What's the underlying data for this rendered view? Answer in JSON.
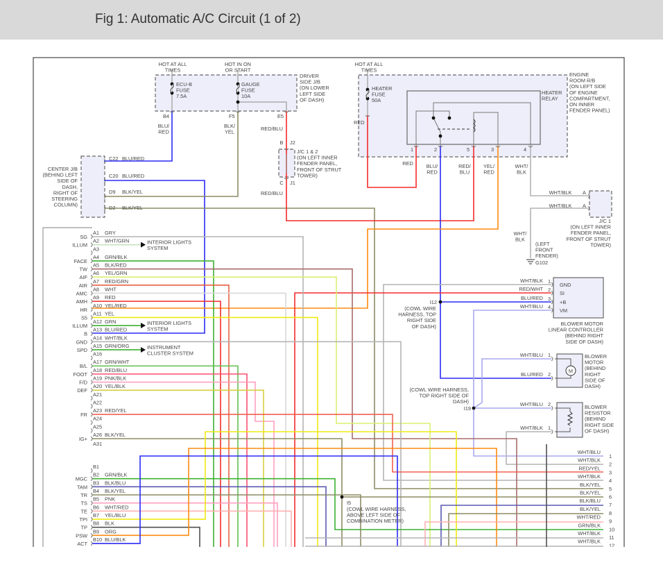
{
  "title": "Fig 1: Automatic A/C Circuit (1 of 2)",
  "colors": {
    "header_bg": "#d9d9d9",
    "BLU": "#2a2af5",
    "RED": "#f52a2a",
    "YEL": "#f0ea10",
    "GRN": "#3cb030",
    "ORG": "#ff8a10",
    "GRY": "#b4b4b4",
    "OLIVE": "#8c8c64",
    "WHT_BLU": "#a8a8f0",
    "PNK": "#ff9fc0",
    "DARK": "#505050",
    "box_fill": "#eeeefa"
  },
  "driver_jb": {
    "hot_ecu": [
      "HOT AT ALL",
      "TIMES"
    ],
    "hot_gauge": [
      "HOT IN ON",
      "OR START"
    ],
    "name": [
      "DRIVER",
      "SIDE J/B",
      "(ON LOWER",
      "LEFT SIDE",
      "OF DASH)"
    ],
    "fuse_ecu": [
      "ECU-B",
      "FUSE",
      "7.5A"
    ],
    "fuse_gauge": [
      "GAUGE",
      "FUSE",
      "10A"
    ],
    "pins": [
      "B4",
      "F5",
      "E5"
    ],
    "wires": [
      [
        "BLU/",
        "RED"
      ],
      [
        "BLK/",
        "YEL"
      ],
      [
        "RED/BLU"
      ]
    ]
  },
  "center_jb": {
    "name": [
      "CENTER J/B",
      "(BEHIND LEFT",
      "SIDE OF",
      "DASH,",
      "RIGHT OF",
      "STEERING",
      "COLUMN)"
    ],
    "pins": [
      {
        "pin": "C22",
        "wire": "BLU/RED"
      },
      {
        "pin": "C20",
        "wire": "BLU/RED"
      },
      {
        "pin": "D9",
        "wire": "BLK/YEL"
      },
      {
        "pin": "D2",
        "wire": "BLK/YEL"
      }
    ]
  },
  "jc12": {
    "name": [
      "J/C 1 & 2",
      "(ON LEFT INNER",
      "FENDER PANEL,",
      "FRONT OF STRUT",
      "TOWER)"
    ],
    "pins": [
      "B",
      "J2",
      "C",
      "J1"
    ],
    "wire_below": "RED/BLU"
  },
  "engine_rb": {
    "hot": [
      "HOT AT ALL",
      "TIMES"
    ],
    "name": [
      "ENGINE",
      "ROOM R/B",
      "(ON LEFT SIDE",
      "OF ENGINE",
      "COMPARTMENT,",
      "ON INNER",
      "FENDER PANEL)"
    ],
    "fuse": [
      "HEATER",
      "FUSE",
      "50A"
    ],
    "wire": "RED"
  },
  "heater_relay": {
    "name": [
      "HEATER",
      "RELAY"
    ],
    "pins": [
      "1",
      "2",
      "5",
      "3",
      "4"
    ],
    "wires": [
      [
        "RED"
      ],
      [
        "BLU/",
        "RED"
      ],
      [
        "RED/",
        "BLU"
      ],
      [
        "YEL/",
        "RED"
      ],
      [
        "WHT/",
        "BLK"
      ]
    ]
  },
  "jc1": {
    "name": [
      "J/C 1",
      "(ON LEFT INNER",
      "FENDER PANEL,",
      "FRONT OF STRUT",
      "TOWER)"
    ],
    "pins": [
      {
        "pin": "A",
        "wire": "WHT/BLK"
      },
      {
        "pin": "A",
        "wire": "WHT/BLK"
      }
    ]
  },
  "ground": {
    "wire": [
      "WHT/",
      "BLK"
    ],
    "location": [
      "(LEFT",
      "FRONT",
      "FENDER)"
    ],
    "id": "G102"
  },
  "blower_controller": {
    "name": [
      "BLOWER MOTOR",
      "LINEAR CONTROLLER",
      "(BEHIND RIGHT",
      "SIDE OF DASH)"
    ],
    "pins": [
      {
        "num": "1",
        "func": "GND",
        "wire": "WHT/BLK"
      },
      {
        "num": "2",
        "func": "SI",
        "wire": "RED/WHT"
      },
      {
        "num": "3",
        "func": "+B",
        "wire": "BLU/RED"
      },
      {
        "num": "4",
        "func": "VM",
        "wire": "WHT/BLU"
      }
    ]
  },
  "splice_i12": {
    "id": "I12",
    "desc": [
      "(COWL WIRE",
      "HARNESS, TOP",
      "RIGHT SIDE",
      "OF DASH)"
    ]
  },
  "blower_motor": {
    "name": [
      "BLOWER",
      "MOTOR",
      "(BEHIND",
      "RIGHT",
      "SIDE OF",
      "DASH)"
    ],
    "symbol": "M",
    "pins": [
      {
        "num": "1",
        "wire": "WHT/BLU"
      },
      {
        "num": "2",
        "wire": "BLU/RED"
      }
    ]
  },
  "splice_i19": {
    "id": "I19",
    "desc": [
      "(COWL WIRE HARNESS,",
      "TOP RIGHT SIDE OF",
      "DASH)"
    ]
  },
  "blower_resistor": {
    "name": [
      "BLOWER",
      "RESISTOR",
      "(BEHIND",
      "RIGHT SIDE",
      "OF DASH)"
    ],
    "pins": [
      {
        "num": "2",
        "wire": "WHT/BLU"
      },
      {
        "num": "1",
        "wire": "WHT/BLK"
      }
    ]
  },
  "splice_i5": {
    "id": "I5",
    "desc": [
      "(COWL WIRE HARNESS,",
      "ABOVE LEFT SIDE OF",
      "COMBINATION METER)"
    ]
  },
  "arrows": [
    [
      "INTERIOR LIGHTS",
      "SYSTEM"
    ],
    [
      "INTERIOR LIGHTS",
      "SYSTEM"
    ],
    [
      "INSTRUMENT",
      "CLUSTER SYSTEM"
    ]
  ],
  "ac_amplifier": {
    "pins": [
      {
        "pin": "A1",
        "func": "SG",
        "wire": "GRY"
      },
      {
        "pin": "A2",
        "func": "ILLUM",
        "wire": "WHT/GRN"
      },
      {
        "pin": "A3",
        "func": "",
        "wire": ""
      },
      {
        "pin": "A4",
        "func": "FACE",
        "wire": "GRN/BLK"
      },
      {
        "pin": "A5",
        "func": "TW",
        "wire": "BLK/RED"
      },
      {
        "pin": "A6",
        "func": "AIF",
        "wire": "YEL/GRN"
      },
      {
        "pin": "A7",
        "func": "AIR",
        "wire": "RED/GRN"
      },
      {
        "pin": "A8",
        "func": "AMC",
        "wire": "WHT"
      },
      {
        "pin": "A9",
        "func": "AMH",
        "wire": "RED"
      },
      {
        "pin": "A10",
        "func": "HR",
        "wire": "YEL/RED"
      },
      {
        "pin": "A11",
        "func": "S5",
        "wire": "YEL"
      },
      {
        "pin": "A12",
        "func": "ILLUM",
        "wire": "GRN"
      },
      {
        "pin": "A13",
        "func": "B",
        "wire": "BLU/RED"
      },
      {
        "pin": "A14",
        "func": "GND",
        "wire": "WHT/BLK"
      },
      {
        "pin": "A15",
        "func": "SPD",
        "wire": "GRN/ORG"
      },
      {
        "pin": "A16",
        "func": "",
        "wire": ""
      },
      {
        "pin": "A17",
        "func": "B/L",
        "wire": "GRN/WHT"
      },
      {
        "pin": "A18",
        "func": "FOOT",
        "wire": "RED/BLU"
      },
      {
        "pin": "A19",
        "func": "F/D",
        "wire": "PNK/BLK"
      },
      {
        "pin": "A20",
        "func": "DEF",
        "wire": "YEL/BLK"
      },
      {
        "pin": "A21",
        "func": "",
        "wire": ""
      },
      {
        "pin": "A22",
        "func": "",
        "wire": ""
      },
      {
        "pin": "A23",
        "func": "FR",
        "wire": "RED/YEL"
      },
      {
        "pin": "A24",
        "func": "",
        "wire": ""
      },
      {
        "pin": "A25",
        "func": "",
        "wire": ""
      },
      {
        "pin": "A26",
        "func": "IG+",
        "wire": "BLK/YEL"
      },
      {
        "pin": "A31",
        "func": "",
        "wire": ""
      },
      {
        "pin": "B1",
        "func": "",
        "wire": ""
      },
      {
        "pin": "B2",
        "func": "MGC",
        "wire": "GRN/BLK"
      },
      {
        "pin": "B3",
        "func": "TAM",
        "wire": "BLK/BLU"
      },
      {
        "pin": "B4",
        "func": "TR",
        "wire": "BLK/YEL"
      },
      {
        "pin": "B5",
        "func": "TS",
        "wire": "PNK"
      },
      {
        "pin": "B6",
        "func": "TE",
        "wire": "WHT/RED"
      },
      {
        "pin": "B7",
        "func": "TPI",
        "wire": "YEL/BLU"
      },
      {
        "pin": "B8",
        "func": "TP",
        "wire": "BLK"
      },
      {
        "pin": "B9",
        "func": "PSW",
        "wire": "ORG"
      },
      {
        "pin": "B10",
        "func": "ACT",
        "wire": "BLU/BLK"
      }
    ]
  },
  "right_connector": [
    {
      "num": "1",
      "wire": "WHT/BLU"
    },
    {
      "num": "2",
      "wire": "WHT/BLK"
    },
    {
      "num": "3",
      "wire": "RED/YEL"
    },
    {
      "num": "4",
      "wire": "WHT/BLK"
    },
    {
      "num": "5",
      "wire": "BLK/YEL"
    },
    {
      "num": "6",
      "wire": "BLK/YEL"
    },
    {
      "num": "7",
      "wire": "BLK/BLU"
    },
    {
      "num": "8",
      "wire": "BLK/YEL"
    },
    {
      "num": "9",
      "wire": "WHT/RED"
    },
    {
      "num": "10",
      "wire": "GRN/BLK"
    },
    {
      "num": "11",
      "wire": "WHT/BLK"
    },
    {
      "num": "12",
      "wire": "WHT/BLK"
    }
  ]
}
